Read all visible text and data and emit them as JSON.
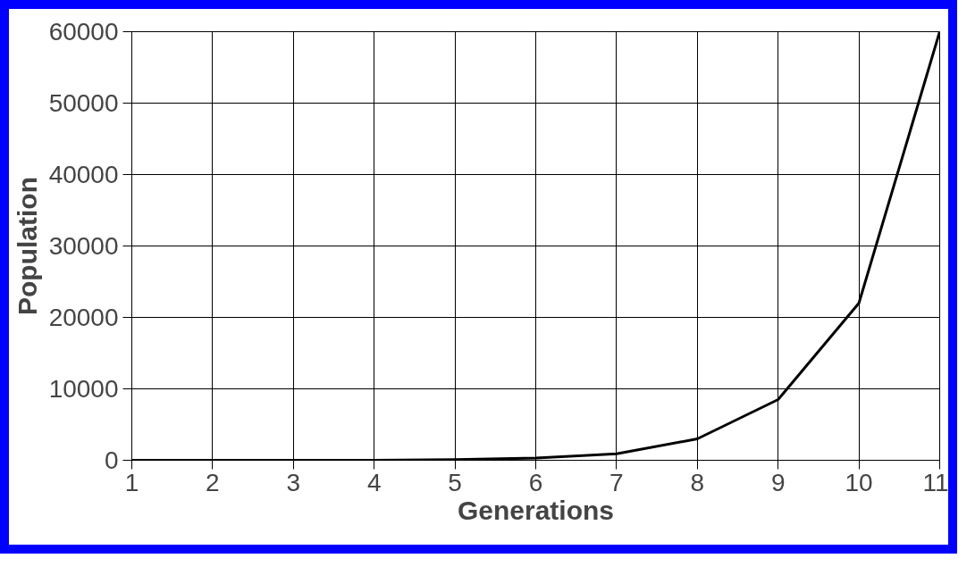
{
  "chart_data": {
    "type": "line",
    "xlabel": "Generations",
    "ylabel": "Population",
    "x": [
      1,
      2,
      3,
      4,
      5,
      6,
      7,
      8,
      9,
      10,
      11
    ],
    "series": [
      {
        "color": "#000000",
        "values": [
          0,
          0,
          0,
          0,
          100,
          300,
          900,
          3000,
          8500,
          22000,
          60000
        ]
      }
    ],
    "xlim": [
      1,
      11
    ],
    "xticks": [
      1,
      2,
      3,
      4,
      5,
      6,
      7,
      8,
      9,
      10,
      11
    ],
    "ylim": [
      0,
      60000
    ],
    "yticks": [
      0,
      10000,
      20000,
      30000,
      40000,
      50000,
      60000
    ],
    "grid": true,
    "marker": "none",
    "line_style": "solid"
  }
}
